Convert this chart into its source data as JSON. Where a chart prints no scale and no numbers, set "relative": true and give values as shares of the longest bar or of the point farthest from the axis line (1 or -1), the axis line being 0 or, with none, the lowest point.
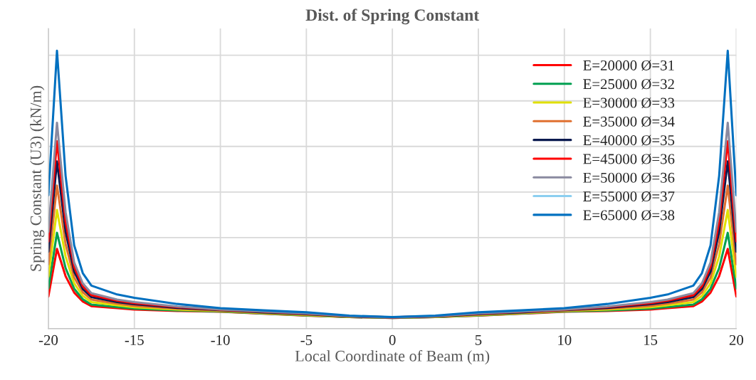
{
  "chart_data": {
    "type": "line",
    "title": "Dist. of Spring Constant",
    "xlabel": "Local Coordinate of Beam (m)",
    "ylabel": "Spring Constant (U3) (kN/m)",
    "relative": true,
    "xlim": [
      -20,
      20
    ],
    "xticks": [
      -20,
      -15,
      -10,
      -5,
      0,
      5,
      10,
      15,
      20
    ],
    "grid": true,
    "legend": "top right",
    "tick_labels": "x",
    "marker": "none",
    "line_style": "solid",
    "x": [
      -20,
      -19.5,
      -19,
      -18.5,
      -18,
      -17.5,
      -16,
      -15,
      -12.5,
      -10,
      -7.5,
      -5,
      -2.5,
      0,
      2.5,
      5,
      7.5,
      10,
      12.5,
      15,
      16,
      17.5,
      18,
      18.5,
      19,
      19.5,
      20
    ],
    "series": [
      {
        "name": "E=20000 Ø=31",
        "color": "#ff0000",
        "values": [
          0.116,
          0.287,
          0.189,
          0.13,
          0.098,
          0.081,
          0.074,
          0.069,
          0.064,
          0.061,
          0.054,
          0.047,
          0.042,
          0.039,
          0.042,
          0.047,
          0.054,
          0.061,
          0.064,
          0.069,
          0.074,
          0.081,
          0.098,
          0.13,
          0.189,
          0.287,
          0.116
        ]
      },
      {
        "name": "E=25000 Ø=32",
        "color": "#00a050",
        "values": [
          0.145,
          0.345,
          0.218,
          0.144,
          0.106,
          0.087,
          0.078,
          0.072,
          0.066,
          0.062,
          0.055,
          0.048,
          0.042,
          0.039,
          0.042,
          0.048,
          0.055,
          0.062,
          0.066,
          0.072,
          0.078,
          0.087,
          0.106,
          0.144,
          0.218,
          0.345,
          0.145
        ]
      },
      {
        "name": "E=30000 Ø=33",
        "color": "#e0e000",
        "values": [
          0.187,
          0.427,
          0.26,
          0.163,
          0.118,
          0.096,
          0.084,
          0.077,
          0.069,
          0.064,
          0.056,
          0.049,
          0.043,
          0.04,
          0.043,
          0.049,
          0.056,
          0.064,
          0.069,
          0.077,
          0.084,
          0.096,
          0.118,
          0.163,
          0.26,
          0.427,
          0.187
        ]
      },
      {
        "name": "E=35000 Ø=34",
        "color": "#e07030",
        "values": [
          0.232,
          0.515,
          0.305,
          0.184,
          0.131,
          0.105,
          0.09,
          0.082,
          0.072,
          0.065,
          0.058,
          0.051,
          0.044,
          0.04,
          0.044,
          0.051,
          0.058,
          0.065,
          0.072,
          0.082,
          0.09,
          0.105,
          0.131,
          0.184,
          0.305,
          0.515,
          0.232
        ]
      },
      {
        "name": "E=40000 Ø=35",
        "color": "#0a1a50",
        "values": [
          0.277,
          0.602,
          0.349,
          0.205,
          0.143,
          0.114,
          0.096,
          0.088,
          0.075,
          0.067,
          0.059,
          0.052,
          0.044,
          0.04,
          0.044,
          0.052,
          0.059,
          0.067,
          0.075,
          0.088,
          0.096,
          0.114,
          0.143,
          0.205,
          0.349,
          0.602,
          0.277
        ]
      },
      {
        "name": "E=45000 Ø=36",
        "color": "#ff0000",
        "values": [
          0.314,
          0.674,
          0.385,
          0.222,
          0.153,
          0.121,
          0.101,
          0.092,
          0.078,
          0.068,
          0.061,
          0.054,
          0.045,
          0.041,
          0.045,
          0.054,
          0.061,
          0.068,
          0.078,
          0.092,
          0.101,
          0.121,
          0.153,
          0.222,
          0.385,
          0.674,
          0.314
        ]
      },
      {
        "name": "E=50000 Ø=36",
        "color": "#8a8aa0",
        "values": [
          0.348,
          0.741,
          0.419,
          0.238,
          0.163,
          0.128,
          0.105,
          0.096,
          0.08,
          0.069,
          0.062,
          0.055,
          0.045,
          0.041,
          0.045,
          0.055,
          0.062,
          0.069,
          0.08,
          0.096,
          0.105,
          0.128,
          0.163,
          0.238,
          0.419,
          0.741,
          0.348
        ]
      },
      {
        "name": "E=55000 Ø=37",
        "color": "#8ccff0",
        "values": [
          null,
          null,
          null,
          null,
          null,
          null,
          null,
          null,
          null,
          null,
          null,
          null,
          null,
          null,
          null,
          null,
          null,
          null,
          null,
          null,
          null,
          null,
          null,
          null,
          null,
          null,
          null
        ]
      },
      {
        "name": "E=65000 Ø=38",
        "color": "#0070c0",
        "values": [
          0.48,
          1,
          0.55,
          0.3,
          0.2,
          0.155,
          0.123,
          0.111,
          0.089,
          0.074,
          0.066,
          0.059,
          0.047,
          0.042,
          0.047,
          0.059,
          0.066,
          0.074,
          0.089,
          0.111,
          0.123,
          0.155,
          0.2,
          0.3,
          0.55,
          1,
          0.48
        ]
      }
    ]
  }
}
